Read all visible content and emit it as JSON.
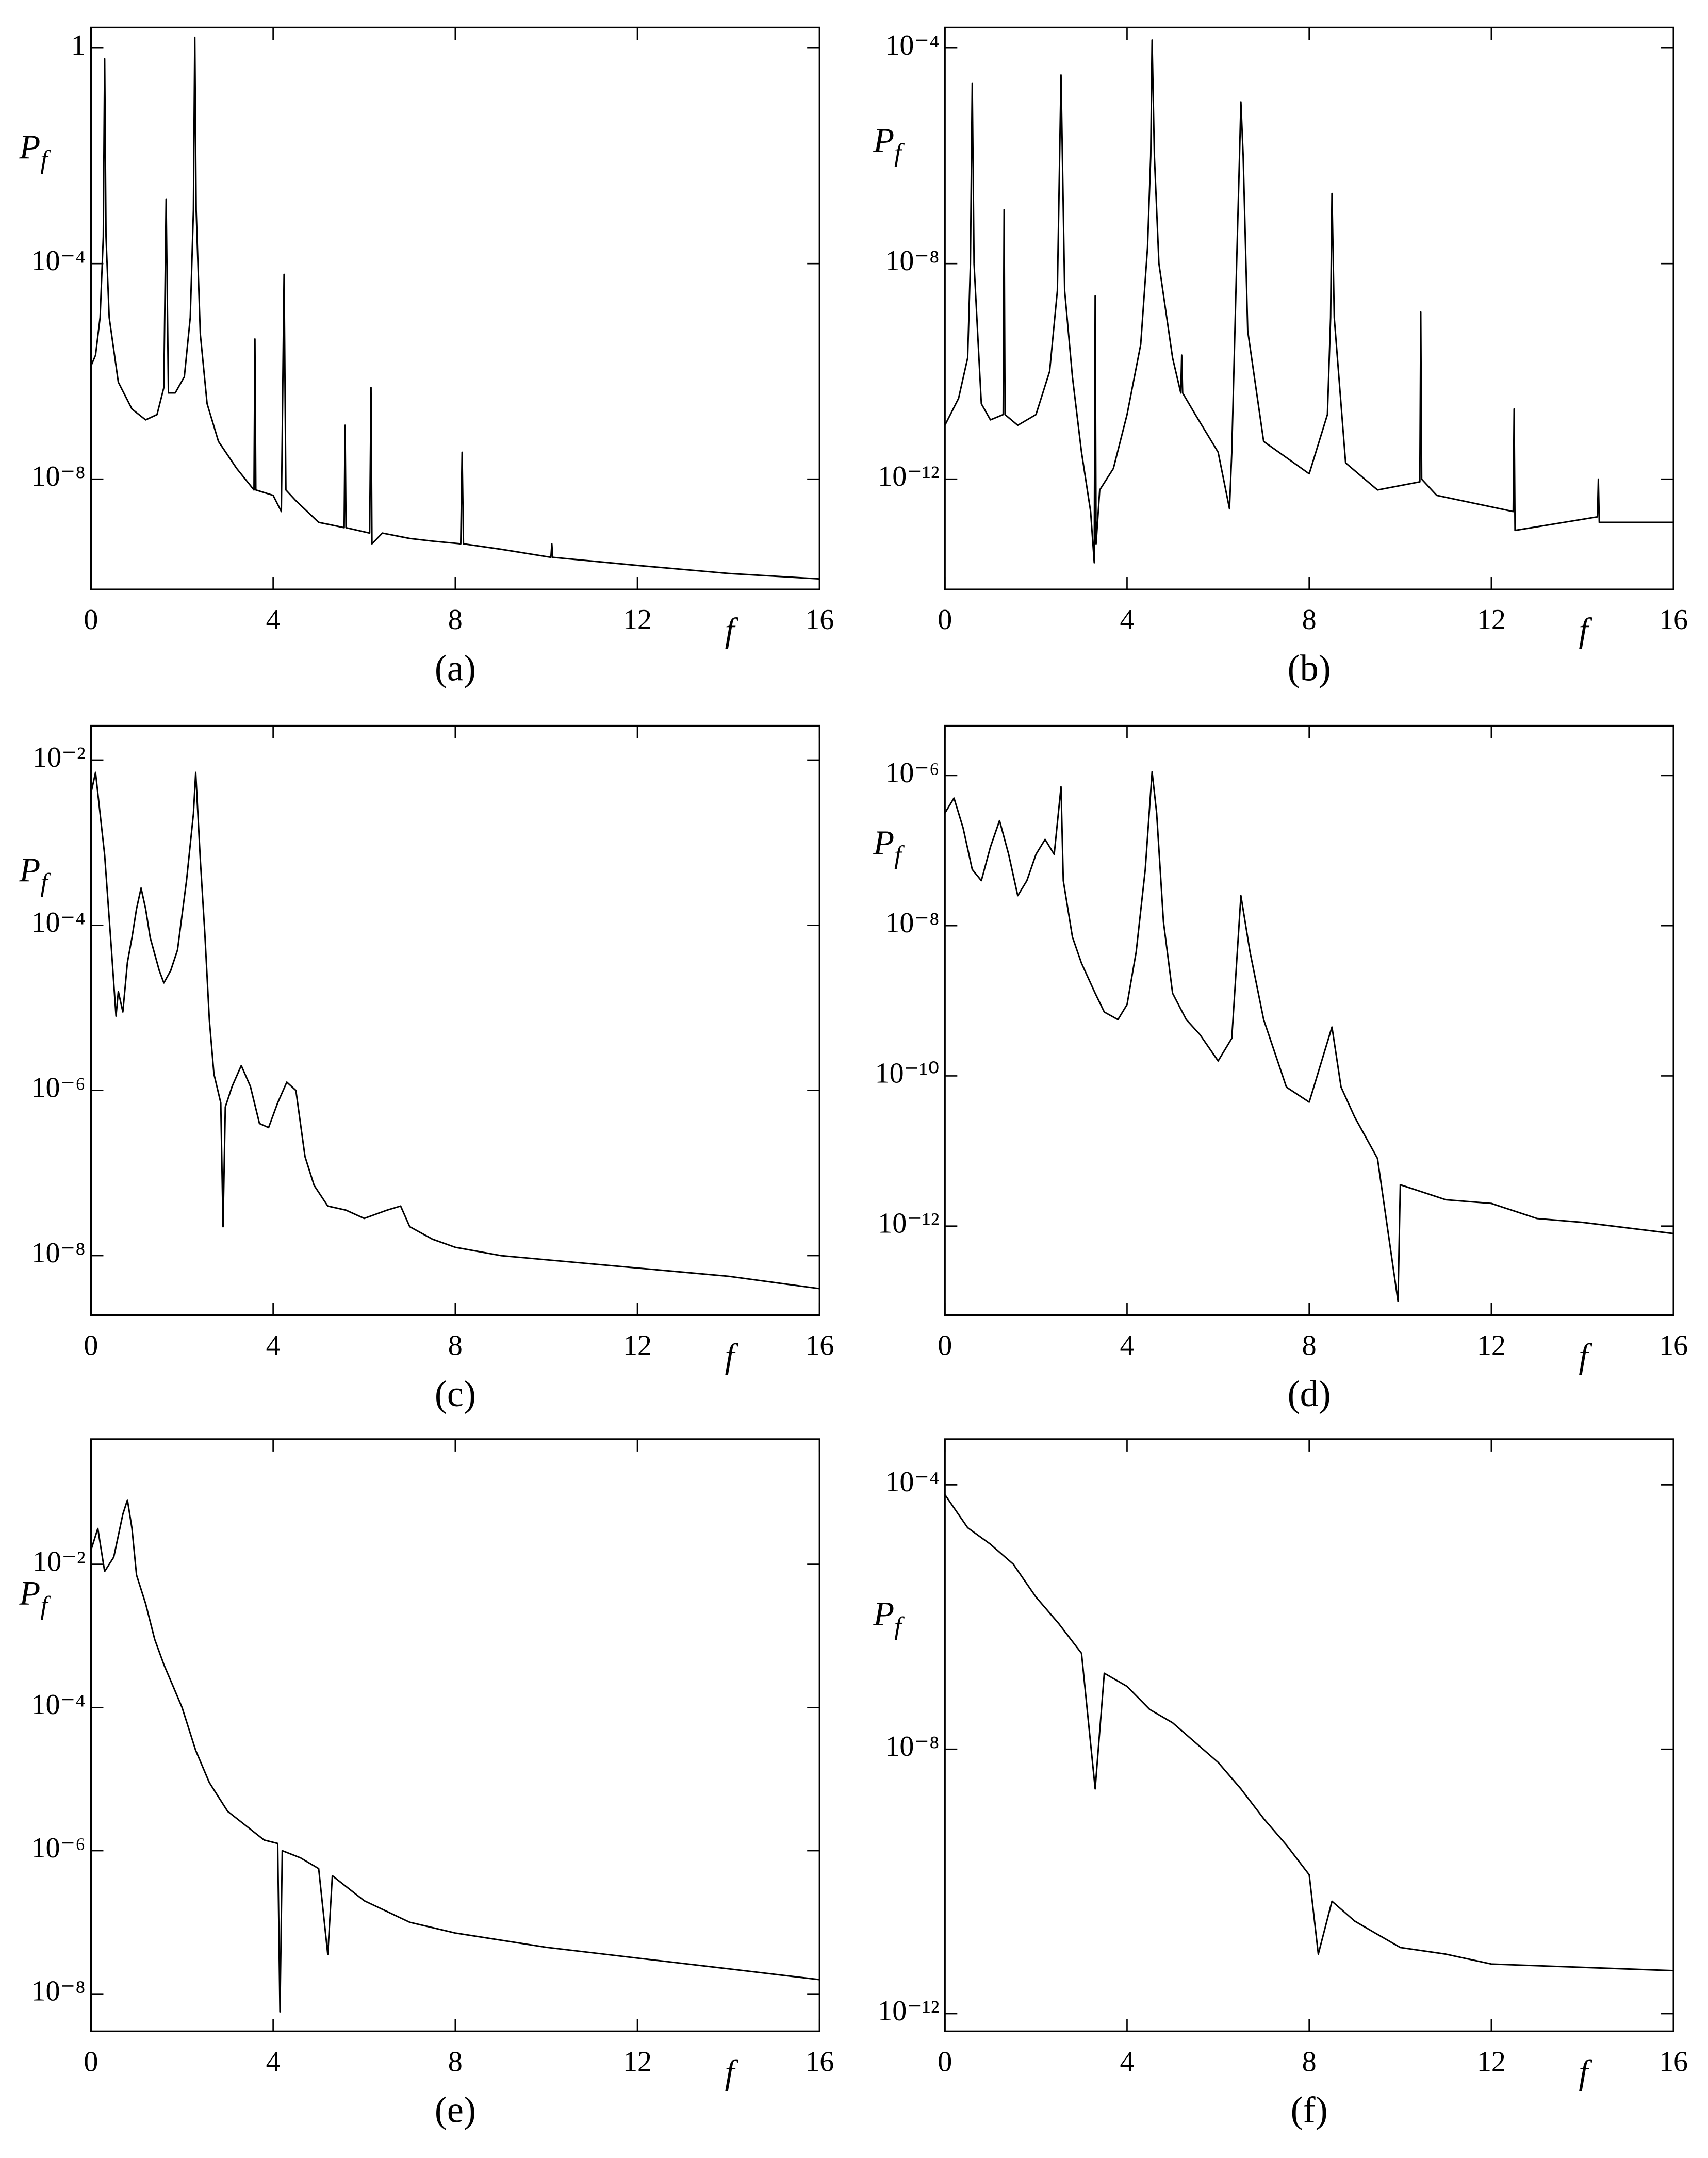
{
  "chart_data": [
    {
      "type": "line",
      "panel_label": "(a)",
      "xlabel": "f",
      "ylabel": "P",
      "ylabel_sub": "f",
      "log_y": true,
      "color": "#000000",
      "xlim": [
        0,
        16
      ],
      "xticks": [
        0,
        4,
        8,
        12,
        16
      ],
      "ylim": [
        9e-11,
        2.4
      ],
      "yticks": [
        1,
        {
          "value": 0.0001,
          "label": "10⁻⁴"
        },
        {
          "value": 1e-08,
          "label": "10⁻⁸"
        }
      ],
      "x": [
        0,
        0.1,
        0.2,
        0.27,
        0.3,
        0.33,
        0.4,
        0.6,
        0.9,
        1.2,
        1.45,
        1.6,
        1.65,
        1.7,
        1.85,
        2.05,
        2.18,
        2.25,
        2.28,
        2.31,
        2.4,
        2.55,
        2.8,
        3.2,
        3.58,
        3.6,
        3.62,
        4.0,
        4.18,
        4.24,
        4.28,
        4.5,
        5.0,
        5.56,
        5.58,
        5.6,
        6.12,
        6.15,
        6.17,
        6.4,
        7.0,
        7.5,
        8.12,
        8.15,
        8.18,
        9.0,
        10.1,
        10.12,
        10.14,
        12,
        14,
        16
      ],
      "values": [
        1.26e-06,
        2e-06,
        1e-05,
        0.000316,
        0.631,
        0.000316,
        1e-05,
        6.31e-07,
        2e-07,
        1.26e-07,
        1.58e-07,
        5.01e-07,
        0.00158,
        3.98e-07,
        3.98e-07,
        7.94e-07,
        1e-05,
        0.001,
        1.58,
        0.001,
        5.01e-06,
        2.51e-07,
        5.01e-08,
        1.58e-08,
        6.31e-09,
        3.98e-06,
        6.31e-09,
        5.01e-09,
        2.51e-09,
        6.31e-05,
        6.31e-09,
        3.98e-09,
        1.58e-09,
        1.26e-09,
        1e-07,
        1.26e-09,
        1e-09,
        5.01e-07,
        6.31e-10,
        1e-09,
        7.94e-10,
        7.08e-10,
        6.31e-10,
        3.16e-08,
        6.31e-10,
        5.01e-10,
        3.55e-10,
        6.31e-10,
        3.55e-10,
        2.51e-10,
        1.78e-10,
        1.41e-10
      ]
    },
    {
      "type": "line",
      "panel_label": "(b)",
      "xlabel": "f",
      "ylabel": "P",
      "ylabel_sub": "f",
      "log_y": true,
      "color": "#000000",
      "xlim": [
        0,
        16
      ],
      "xticks": [
        0,
        4,
        8,
        12,
        16
      ],
      "ylim": [
        9e-15,
        0.00024
      ],
      "yticks": [
        {
          "value": 0.0001,
          "label": "10⁻⁴"
        },
        {
          "value": 1e-08,
          "label": "10⁻⁸"
        },
        {
          "value": 1e-12,
          "label": "10⁻¹²"
        }
      ],
      "x": [
        0,
        0.3,
        0.5,
        0.56,
        0.6,
        0.64,
        0.8,
        1.0,
        1.28,
        1.3,
        1.32,
        1.6,
        2.0,
        2.3,
        2.47,
        2.55,
        2.63,
        2.8,
        3.0,
        3.2,
        3.28,
        3.3,
        3.32,
        3.4,
        3.7,
        4.0,
        4.3,
        4.45,
        4.52,
        4.55,
        4.6,
        4.7,
        5.0,
        5.18,
        5.2,
        5.22,
        5.5,
        6.0,
        6.25,
        6.3,
        6.4,
        6.47,
        6.5,
        6.55,
        6.65,
        7.0,
        8.0,
        8.4,
        8.47,
        8.5,
        8.55,
        8.8,
        9.5,
        10.43,
        10.45,
        10.47,
        10.8,
        12.48,
        12.5,
        12.52,
        14.33,
        14.35,
        14.37,
        16
      ],
      "values": [
        1e-11,
        3.16e-11,
        1.78e-10,
        1e-08,
        2.24e-05,
        1e-08,
        2.51e-11,
        1.26e-11,
        1.58e-11,
        1e-07,
        1.58e-11,
        1e-11,
        1.58e-11,
        1e-10,
        3.16e-09,
        3.16e-05,
        3.16e-09,
        7.94e-11,
        3.16e-12,
        2.51e-13,
        2.82e-14,
        2.51e-09,
        6.31e-14,
        6.31e-13,
        1.58e-12,
        1.58e-11,
        3.16e-10,
        2e-08,
        1e-06,
        0.000141,
        1e-06,
        1e-08,
        1.78e-10,
        3.98e-11,
        2e-10,
        3.98e-11,
        1.58e-11,
        3.16e-12,
        2.82e-13,
        3.16e-12,
        6.31e-09,
        1e-06,
        1e-05,
        1e-06,
        5.62e-10,
        5.01e-12,
        1.26e-12,
        1.58e-11,
        1e-09,
        2e-07,
        1e-09,
        2e-12,
        6.31e-13,
        8.91e-13,
        1.26e-09,
        1e-12,
        5.01e-13,
        2.51e-13,
        2e-11,
        1.12e-13,
        2e-13,
        1e-12,
        1.58e-13,
        1.58e-13
      ]
    },
    {
      "type": "line",
      "panel_label": "(c)",
      "xlabel": "f",
      "ylabel": "P",
      "ylabel_sub": "f",
      "log_y": true,
      "color": "#000000",
      "xlim": [
        0,
        16
      ],
      "xticks": [
        0,
        4,
        8,
        12,
        16
      ],
      "ylim": [
        1.9e-09,
        0.026
      ],
      "yticks": [
        {
          "value": 0.01,
          "label": "10⁻²"
        },
        {
          "value": 0.0001,
          "label": "10⁻⁴"
        },
        {
          "value": 1e-06,
          "label": "10⁻⁶"
        },
        {
          "value": 1e-08,
          "label": "10⁻⁸"
        }
      ],
      "x": [
        0,
        0.1,
        0.2,
        0.3,
        0.45,
        0.55,
        0.6,
        0.7,
        0.8,
        0.9,
        1.0,
        1.1,
        1.2,
        1.3,
        1.5,
        1.6,
        1.75,
        1.9,
        2.1,
        2.25,
        2.3,
        2.4,
        2.5,
        2.6,
        2.7,
        2.85,
        2.9,
        2.95,
        3.1,
        3.3,
        3.5,
        3.7,
        3.9,
        4.1,
        4.3,
        4.5,
        4.7,
        4.9,
        5.2,
        5.6,
        6.0,
        6.5,
        6.8,
        7.0,
        7.5,
        8,
        9,
        10,
        12,
        14,
        16
      ],
      "values": [
        0.00398,
        0.00708,
        0.00224,
        0.000708,
        5.01e-05,
        7.94e-06,
        1.58e-05,
        8.91e-06,
        3.55e-05,
        7.08e-05,
        0.000158,
        0.000282,
        0.000158,
        7.08e-05,
        2.82e-05,
        2e-05,
        2.82e-05,
        5.01e-05,
        0.000355,
        0.00224,
        0.00708,
        0.000631,
        7.94e-05,
        7.08e-06,
        1.58e-06,
        7.08e-07,
        2.24e-08,
        6.31e-07,
        1.12e-06,
        2e-06,
        1.12e-06,
        3.98e-07,
        3.55e-07,
        7.08e-07,
        1.26e-06,
        1e-06,
        1.58e-07,
        7.08e-08,
        3.98e-08,
        3.55e-08,
        2.82e-08,
        3.55e-08,
        3.98e-08,
        2.24e-08,
        1.58e-08,
        1.26e-08,
        1e-08,
        8.91e-09,
        7.08e-09,
        5.62e-09,
        3.98e-09
      ]
    },
    {
      "type": "line",
      "panel_label": "(d)",
      "xlabel": "f",
      "ylabel": "P",
      "ylabel_sub": "f",
      "log_y": true,
      "color": "#000000",
      "xlim": [
        0,
        16
      ],
      "xticks": [
        0,
        4,
        8,
        12,
        16
      ],
      "ylim": [
        6.5e-14,
        4.6e-06
      ],
      "yticks": [
        {
          "value": 1e-06,
          "label": "10⁻⁶"
        },
        {
          "value": 1e-08,
          "label": "10⁻⁸"
        },
        {
          "value": 1e-10,
          "label": "10⁻¹⁰"
        },
        {
          "value": 1e-12,
          "label": "10⁻¹²"
        }
      ],
      "x": [
        0,
        0.2,
        0.4,
        0.6,
        0.8,
        1.0,
        1.2,
        1.4,
        1.6,
        1.8,
        2.0,
        2.2,
        2.4,
        2.55,
        2.6,
        2.8,
        3.0,
        3.3,
        3.5,
        3.8,
        4.0,
        4.2,
        4.4,
        4.55,
        4.65,
        4.8,
        5.0,
        5.3,
        5.6,
        6.0,
        6.3,
        6.5,
        6.7,
        7.0,
        7.5,
        8.0,
        8.5,
        8.7,
        9.0,
        9.5,
        9.95,
        10,
        11,
        12,
        13,
        14,
        16
      ],
      "values": [
        3.16e-07,
        5.01e-07,
        2e-07,
        5.62e-08,
        3.98e-08,
        1.12e-07,
        2.51e-07,
        8.91e-08,
        2.51e-08,
        3.98e-08,
        8.91e-08,
        1.41e-07,
        8.91e-08,
        7.08e-07,
        3.98e-08,
        7.08e-09,
        3.16e-09,
        1.26e-09,
        7.08e-10,
        5.62e-10,
        8.91e-10,
        4.47e-09,
        5.62e-08,
        1.12e-06,
        3.16e-07,
        1.12e-08,
        1.26e-09,
        5.62e-10,
        3.55e-10,
        1.58e-10,
        3.16e-10,
        2.51e-08,
        4.47e-09,
        5.62e-10,
        7.08e-11,
        4.47e-11,
        4.47e-10,
        7.08e-11,
        2.82e-11,
        7.94e-12,
        1e-13,
        3.55e-12,
        2.24e-12,
        2e-12,
        1.26e-12,
        1.12e-12,
        7.94e-13
      ]
    },
    {
      "type": "line",
      "panel_label": "(e)",
      "xlabel": "f",
      "ylabel": "P",
      "ylabel_sub": "f",
      "log_y": true,
      "color": "#000000",
      "xlim": [
        0,
        16
      ],
      "xticks": [
        0,
        4,
        8,
        12,
        16
      ],
      "ylim": [
        3e-09,
        0.56
      ],
      "yticks": [
        {
          "value": 0.01,
          "label": "10⁻²"
        },
        {
          "value": 0.0001,
          "label": "10⁻⁴"
        },
        {
          "value": 1e-06,
          "label": "10⁻⁶"
        },
        {
          "value": 1e-08,
          "label": "10⁻⁸"
        }
      ],
      "x": [
        0,
        0.15,
        0.3,
        0.5,
        0.7,
        0.8,
        0.9,
        1.0,
        1.2,
        1.4,
        1.6,
        1.8,
        2.0,
        2.3,
        2.6,
        3.0,
        3.4,
        3.8,
        4.1,
        4.15,
        4.2,
        4.6,
        5.0,
        5.2,
        5.3,
        6,
        7,
        8,
        10,
        12,
        14,
        16
      ],
      "values": [
        0.0158,
        0.0316,
        0.00794,
        0.0126,
        0.0501,
        0.0794,
        0.0316,
        0.00708,
        0.00282,
        0.000891,
        0.000398,
        0.0002,
        0.0001,
        2.51e-05,
        8.91e-06,
        3.55e-06,
        2.24e-06,
        1.41e-06,
        1.26e-06,
        5.62e-09,
        1e-06,
        7.94e-07,
        5.62e-07,
        3.55e-08,
        4.47e-07,
        2e-07,
        1e-07,
        7.08e-08,
        4.47e-08,
        3.16e-08,
        2.24e-08,
        1.58e-08
      ]
    },
    {
      "type": "line",
      "panel_label": "(f)",
      "xlabel": "f",
      "ylabel": "P",
      "ylabel_sub": "f",
      "log_y": true,
      "color": "#000000",
      "xlim": [
        0,
        16
      ],
      "xticks": [
        0,
        4,
        8,
        12,
        16
      ],
      "ylim": [
        5.4e-13,
        0.00049
      ],
      "yticks": [
        {
          "value": 0.0001,
          "label": "10⁻⁴"
        },
        {
          "value": 1e-08,
          "label": "10⁻⁸"
        },
        {
          "value": 1e-12,
          "label": "10⁻¹²"
        }
      ],
      "x": [
        0,
        0.5,
        1,
        1.5,
        2,
        2.5,
        3,
        3.3,
        3.5,
        4,
        4.5,
        5,
        5.5,
        6,
        6.5,
        7,
        7.5,
        8,
        8.2,
        8.5,
        9,
        9.5,
        10,
        11,
        12,
        14,
        16
      ],
      "values": [
        7.08e-05,
        2.24e-05,
        1.26e-05,
        6.31e-06,
        2e-06,
        7.94e-07,
        2.82e-07,
        2.51e-09,
        1.41e-07,
        8.91e-08,
        3.98e-08,
        2.51e-08,
        1.26e-08,
        6.31e-09,
        2.51e-09,
        8.91e-10,
        3.55e-10,
        1.26e-10,
        7.94e-12,
        5.01e-11,
        2.51e-11,
        1.58e-11,
        1e-11,
        7.94e-12,
        5.62e-12,
        5.01e-12,
        4.47e-12
      ]
    }
  ]
}
